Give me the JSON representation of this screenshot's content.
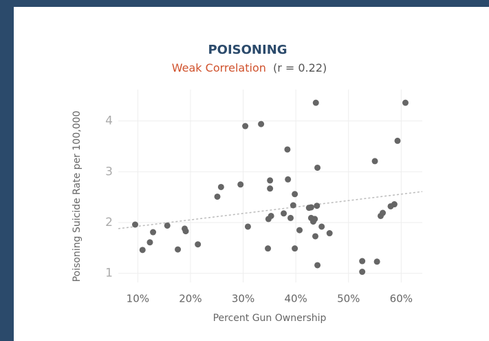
{
  "chart_data": {
    "type": "scatter",
    "title": "POISONING",
    "subtitle": "Weak Correlation",
    "subtitle_stat": "(r = 0.22)",
    "x_label": "Percent Gun Ownership",
    "y_label": "Poisoning Suicide Rate per 100,000",
    "color": "#666666",
    "trendline": {
      "x": [
        6.3,
        64
      ],
      "y": [
        1.88,
        2.61
      ],
      "color": "#bbbbbb"
    },
    "grid": true,
    "xlim": [
      6.3,
      64
    ],
    "ylim": [
      0.82,
      4.62
    ],
    "xticks": [
      {
        "value": 10,
        "label": "10%"
      },
      {
        "value": 20,
        "label": "20%"
      },
      {
        "value": 30,
        "label": "30%"
      },
      {
        "value": 40,
        "label": "40%"
      },
      {
        "value": 50,
        "label": "50%"
      },
      {
        "value": 60,
        "label": "60%"
      }
    ],
    "yticks": [
      1,
      2,
      3,
      4
    ],
    "x": [
      9.5,
      10.9,
      12.9,
      12.3,
      15.6,
      17.6,
      18.9,
      19.1,
      21.4,
      25.1,
      25.8,
      29.5,
      30.4,
      33.4,
      30.9,
      34.7,
      34.8,
      35.1,
      35.1,
      35.3,
      37.7,
      38.4,
      38.5,
      39.0,
      39.5,
      39.8,
      39.8,
      40.7,
      42.5,
      42.9,
      42.9,
      43.3,
      43.6,
      43.7,
      44.0,
      43.8,
      44.1,
      44.1,
      44.9,
      46.4,
      52.6,
      52.6,
      55.0,
      55.4,
      56.1,
      56.5,
      58.0,
      58.7,
      59.3,
      60.8
    ],
    "y": [
      1.96,
      1.46,
      1.81,
      1.61,
      1.94,
      1.47,
      1.88,
      1.83,
      1.57,
      2.51,
      2.7,
      2.75,
      3.9,
      3.94,
      1.92,
      1.49,
      2.07,
      2.83,
      2.67,
      2.13,
      2.18,
      3.44,
      2.85,
      2.09,
      2.34,
      2.56,
      1.49,
      1.85,
      2.29,
      2.3,
      2.09,
      2.02,
      2.07,
      1.73,
      2.33,
      4.36,
      3.08,
      1.16,
      1.92,
      1.79,
      1.24,
      1.03,
      3.21,
      1.23,
      2.13,
      2.19,
      2.32,
      2.36,
      3.61,
      4.36
    ]
  }
}
